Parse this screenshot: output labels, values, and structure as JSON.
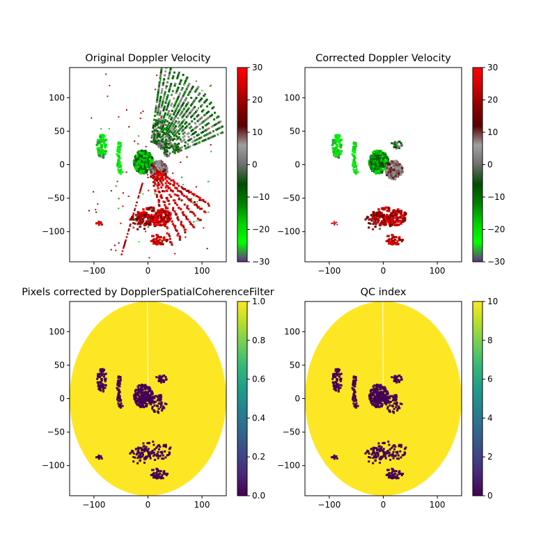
{
  "figure": {
    "background": "#ffffff"
  },
  "chart_data": [
    {
      "type": "heatmap",
      "title": "Original Doppler Velocity",
      "xlabel": "",
      "ylabel": "",
      "xlim": [
        -145,
        145
      ],
      "ylim": [
        -145,
        145
      ],
      "xticks": [
        -100,
        0,
        100
      ],
      "yticks": [
        -100,
        -50,
        0,
        50,
        100
      ],
      "grid": false,
      "colorbar": {
        "range": [
          -30,
          30
        ],
        "ticks": [
          -30,
          -20,
          -10,
          0,
          10,
          20,
          30
        ],
        "colormap": "velocity-green-gray-red"
      },
      "colormap_stops": [
        "#6a2c8c",
        "#00ff00",
        "#00d000",
        "#008000",
        "#004d00",
        "#6e6e6e",
        "#a0a0a0",
        "#5a0000",
        "#8b0000",
        "#d00000",
        "#ff0000"
      ],
      "features": [
        {
          "desc": "northeast sector rays",
          "azimuth": [
            10,
            70
          ],
          "range": [
            40,
            150
          ],
          "mix": "green-gray"
        },
        {
          "desc": "inner approaching echo",
          "center": [
            -10,
            5
          ],
          "value_range": [
            -20,
            -5
          ]
        },
        {
          "desc": "inner receding echo",
          "center": [
            20,
            -10
          ],
          "value_range": [
            5,
            25
          ]
        },
        {
          "desc": "southeast red radial streaks",
          "azimuth": [
            115,
            145
          ],
          "range": [
            20,
            130
          ],
          "value_range": [
            15,
            30
          ]
        },
        {
          "desc": "southern red cluster",
          "center": [
            10,
            -80
          ],
          "value_range": [
            15,
            30
          ]
        },
        {
          "desc": "west bright green cell",
          "center": [
            -85,
            30
          ],
          "value_range": [
            -30,
            -20
          ]
        }
      ]
    },
    {
      "type": "heatmap",
      "title": "Corrected Doppler Velocity",
      "xlabel": "",
      "ylabel": "",
      "xlim": [
        -145,
        145
      ],
      "ylim": [
        -145,
        145
      ],
      "xticks": [
        -100,
        0,
        100
      ],
      "yticks": [
        -100,
        -50,
        0,
        50,
        100
      ],
      "grid": false,
      "colorbar": {
        "range": [
          -30,
          30
        ],
        "ticks": [
          -30,
          -20,
          -10,
          0,
          10,
          20,
          30
        ],
        "colormap": "velocity-green-gray-red"
      },
      "colormap_stops": [
        "#6a2c8c",
        "#00ff00",
        "#00d000",
        "#008000",
        "#004d00",
        "#6e6e6e",
        "#a0a0a0",
        "#5a0000",
        "#8b0000",
        "#d00000",
        "#ff0000"
      ],
      "features": [
        {
          "desc": "west bright green cell",
          "center": [
            -85,
            25
          ],
          "value_range": [
            -30,
            -20
          ]
        },
        {
          "desc": "inner approaching echo",
          "center": [
            -5,
            0
          ],
          "value_range": [
            -20,
            -5
          ]
        },
        {
          "desc": "inner receding echo",
          "center": [
            15,
            0
          ],
          "value_range": [
            5,
            20
          ]
        },
        {
          "desc": "southern red cluster",
          "center": [
            5,
            -75
          ],
          "value_range": [
            15,
            30
          ]
        }
      ]
    },
    {
      "type": "heatmap",
      "title": "Pixels corrected by DopplerSpatialCoherenceFilter",
      "xlabel": "",
      "ylabel": "",
      "xlim": [
        -145,
        145
      ],
      "ylim": [
        -145,
        145
      ],
      "xticks": [
        -100,
        0,
        100
      ],
      "yticks": [
        -100,
        -50,
        0,
        50,
        100
      ],
      "grid": false,
      "colorbar": {
        "range": [
          0,
          1
        ],
        "ticks": [
          0.0,
          0.2,
          0.4,
          0.6,
          0.8,
          1.0
        ],
        "tick_labels": [
          "0.0",
          "0.2",
          "0.4",
          "0.6",
          "0.8",
          "1.0"
        ],
        "colormap": "viridis"
      },
      "colormap_stops": [
        "#440154",
        "#482878",
        "#3e4989",
        "#31688e",
        "#26828e",
        "#1f9e89",
        "#35b779",
        "#6ece58",
        "#b5de2b",
        "#fde725"
      ],
      "field": {
        "shape": "disk",
        "radius": 145,
        "value": 1.0
      },
      "features": [
        {
          "desc": "uncorrected pixels",
          "value": 0.0
        }
      ]
    },
    {
      "type": "heatmap",
      "title": "QC index",
      "xlabel": "",
      "ylabel": "",
      "xlim": [
        -145,
        145
      ],
      "ylim": [
        -145,
        145
      ],
      "xticks": [
        -100,
        0,
        100
      ],
      "yticks": [
        -100,
        -50,
        0,
        50,
        100
      ],
      "grid": false,
      "colorbar": {
        "range": [
          0,
          10
        ],
        "ticks": [
          0,
          2,
          4,
          6,
          8,
          10
        ],
        "colormap": "viridis"
      },
      "colormap_stops": [
        "#440154",
        "#482878",
        "#3e4989",
        "#31688e",
        "#26828e",
        "#1f9e89",
        "#35b779",
        "#6ece58",
        "#b5de2b",
        "#fde725"
      ],
      "field": {
        "shape": "disk",
        "radius": 145,
        "value": 10
      },
      "features": [
        {
          "desc": "low QC pixels",
          "value": 0
        }
      ]
    }
  ]
}
